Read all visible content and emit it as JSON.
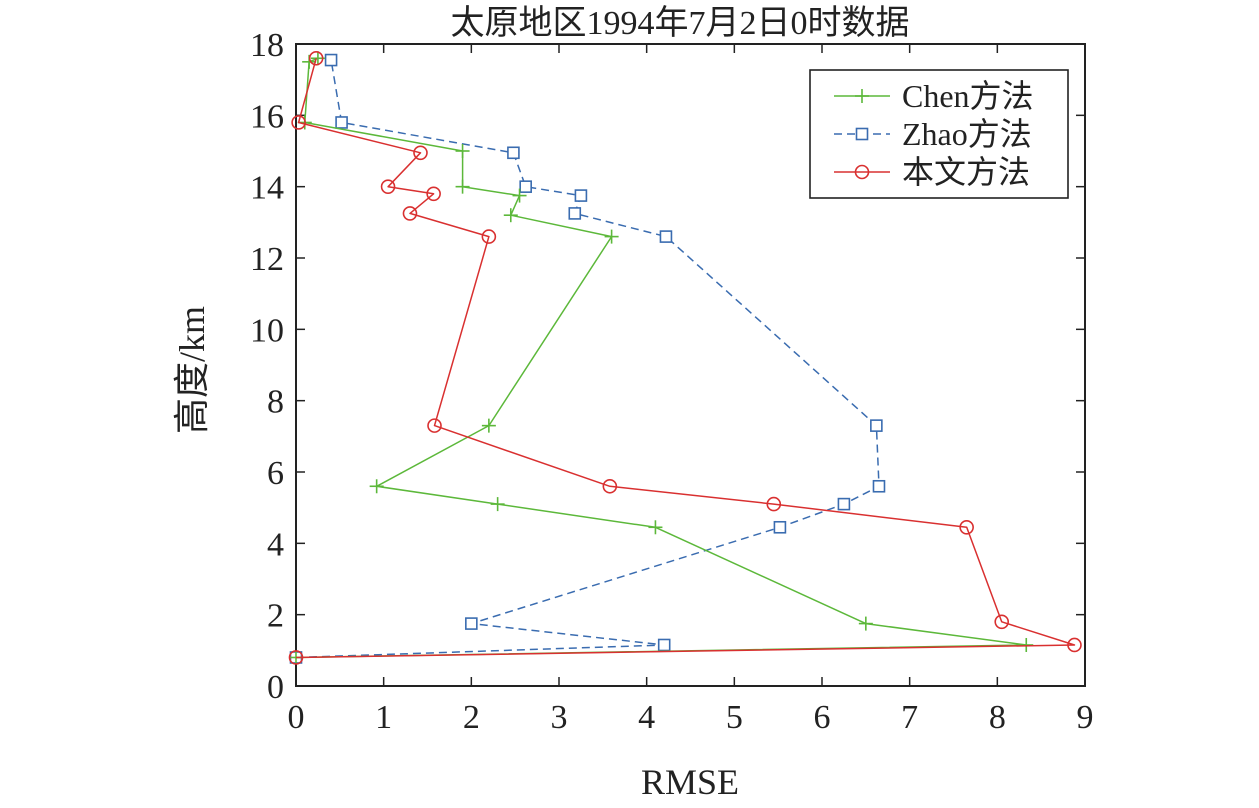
{
  "chart_data": {
    "type": "line",
    "title": "太原地区1994年7月2日0时数据",
    "xlabel": "RMSE",
    "ylabel": "高度/km",
    "xlim": [
      0,
      9
    ],
    "ylim": [
      0,
      18
    ],
    "x_ticks": [
      0,
      1,
      2,
      3,
      4,
      5,
      6,
      7,
      8,
      9
    ],
    "y_ticks": [
      0,
      2,
      4,
      6,
      8,
      10,
      12,
      14,
      16,
      18
    ],
    "grid": false,
    "legend_position": "top-right",
    "series": [
      {
        "name": "Chen方法",
        "color": "#5cb83a",
        "marker": "plus",
        "line_style": "solid",
        "points": [
          [
            0.0,
            0.8
          ],
          [
            8.33,
            1.15
          ],
          [
            6.5,
            1.75
          ],
          [
            4.1,
            4.45
          ],
          [
            2.3,
            5.1
          ],
          [
            0.92,
            5.6
          ],
          [
            2.2,
            7.3
          ],
          [
            3.6,
            12.6
          ],
          [
            2.45,
            13.2
          ],
          [
            2.55,
            13.75
          ],
          [
            1.9,
            14.0
          ],
          [
            1.9,
            15.0
          ],
          [
            0.1,
            15.8
          ],
          [
            0.15,
            17.5
          ],
          [
            0.25,
            17.6
          ]
        ]
      },
      {
        "name": "Zhao方法",
        "color": "#3a6cb0",
        "marker": "square",
        "line_style": "dashed",
        "points": [
          [
            0.0,
            0.8
          ],
          [
            4.2,
            1.15
          ],
          [
            2.0,
            1.75
          ],
          [
            5.52,
            4.45
          ],
          [
            6.25,
            5.1
          ],
          [
            6.65,
            5.6
          ],
          [
            6.62,
            7.3
          ],
          [
            4.22,
            12.6
          ],
          [
            3.18,
            13.25
          ],
          [
            3.25,
            13.75
          ],
          [
            2.62,
            14.0
          ],
          [
            2.48,
            14.95
          ],
          [
            0.52,
            15.8
          ],
          [
            0.4,
            17.55
          ]
        ]
      },
      {
        "name": "本文方法",
        "color": "#d93030",
        "marker": "circle",
        "line_style": "solid",
        "points": [
          [
            0.0,
            0.8
          ],
          [
            8.88,
            1.15
          ],
          [
            8.05,
            1.8
          ],
          [
            7.65,
            4.45
          ],
          [
            5.45,
            5.1
          ],
          [
            3.58,
            5.6
          ],
          [
            1.58,
            7.3
          ],
          [
            2.2,
            12.6
          ],
          [
            1.3,
            13.25
          ],
          [
            1.57,
            13.8
          ],
          [
            1.05,
            14.0
          ],
          [
            1.42,
            14.95
          ],
          [
            0.03,
            15.8
          ],
          [
            0.23,
            17.6
          ]
        ]
      }
    ]
  }
}
